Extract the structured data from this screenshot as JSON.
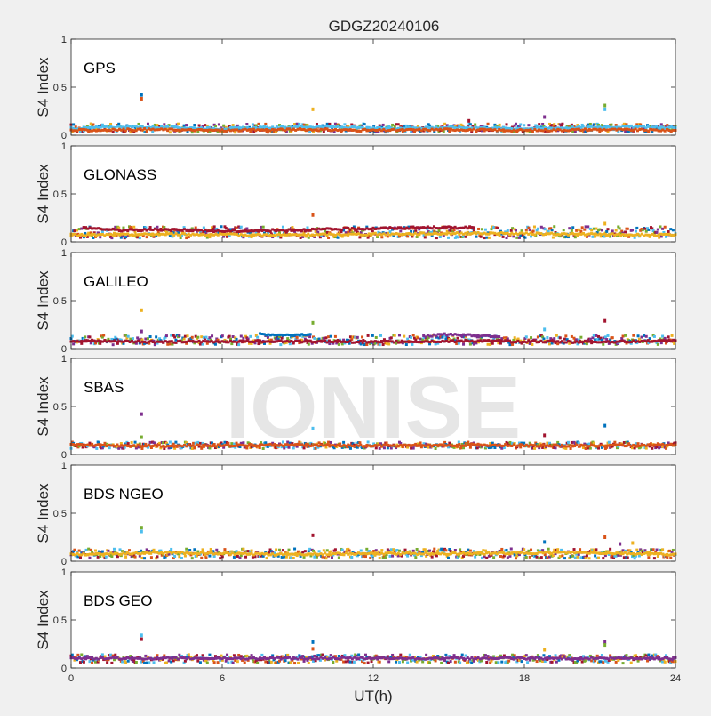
{
  "figure": {
    "title": "GDGZ20240106",
    "xlabel": "UT(h)",
    "watermark": "IONISE"
  },
  "chart_data": {
    "type": "scatter",
    "title": "GDGZ20240106",
    "xlabel": "UT(h)",
    "xlim": [
      0,
      24
    ],
    "xticks": [
      0,
      6,
      12,
      18,
      24
    ],
    "colors": [
      "#0072BD",
      "#D95319",
      "#EDB120",
      "#7E2F8E",
      "#77AC30",
      "#4DBEEE",
      "#A2142F"
    ],
    "panels": [
      {
        "label": "GPS",
        "ylabel": "S4 Index",
        "ylim": [
          0,
          1
        ],
        "yticks": [
          0,
          0.5,
          1
        ],
        "baseline": [
          0.03,
          0.12
        ],
        "series": [
          {
            "x": [
              0,
              2,
              4,
              6,
              8,
              10,
              12,
              14,
              16,
              18,
              20,
              22,
              24
            ],
            "y": [
              0.07,
              0.09,
              0.08,
              0.07,
              0.08,
              0.09,
              0.07,
              0.08,
              0.08,
              0.07,
              0.08,
              0.09,
              0.08
            ]
          },
          {
            "x": [
              0,
              3,
              6,
              9,
              12,
              15,
              18,
              21,
              24
            ],
            "y": [
              0.05,
              0.06,
              0.05,
              0.06,
              0.05,
              0.06,
              0.05,
              0.06,
              0.05
            ]
          }
        ],
        "spikes": [
          {
            "x": 2.8,
            "y": 0.42
          },
          {
            "x": 2.8,
            "y": 0.38
          },
          {
            "x": 9.6,
            "y": 0.27
          },
          {
            "x": 18.8,
            "y": 0.19
          },
          {
            "x": 21.2,
            "y": 0.31
          },
          {
            "x": 21.2,
            "y": 0.27
          },
          {
            "x": 15.8,
            "y": 0.15
          }
        ]
      },
      {
        "label": "GLONASS",
        "ylabel": "S4 Index",
        "ylim": [
          0,
          1
        ],
        "yticks": [
          0,
          0.5,
          1
        ],
        "baseline": [
          0.04,
          0.16
        ],
        "series": [
          {
            "x": [
              0.5,
              2,
              4,
              6,
              8,
              10,
              12,
              14,
              16
            ],
            "y": [
              0.15,
              0.12,
              0.13,
              0.11,
              0.12,
              0.13,
              0.14,
              0.15,
              0.15
            ]
          },
          {
            "x": [
              0,
              4,
              8,
              12,
              16,
              20,
              24
            ],
            "y": [
              0.07,
              0.08,
              0.07,
              0.08,
              0.09,
              0.08,
              0.07
            ]
          }
        ],
        "spikes": [
          {
            "x": 9.6,
            "y": 0.28
          },
          {
            "x": 21.2,
            "y": 0.19
          }
        ]
      },
      {
        "label": "GALILEO",
        "ylabel": "S4 Index",
        "ylim": [
          0,
          1
        ],
        "yticks": [
          0,
          0.5,
          1
        ],
        "baseline": [
          0.04,
          0.14
        ],
        "series": [
          {
            "x": [
              7.5,
              8.5,
              9.5
            ],
            "y": [
              0.15,
              0.14,
              0.15
            ]
          },
          {
            "x": [
              14,
              15,
              16,
              17
            ],
            "y": [
              0.13,
              0.15,
              0.14,
              0.13
            ]
          },
          {
            "x": [
              0,
              4,
              8,
              12,
              16,
              20,
              24
            ],
            "y": [
              0.08,
              0.07,
              0.08,
              0.07,
              0.08,
              0.07,
              0.08
            ]
          }
        ],
        "spikes": [
          {
            "x": 2.8,
            "y": 0.4
          },
          {
            "x": 2.8,
            "y": 0.18
          },
          {
            "x": 9.6,
            "y": 0.27
          },
          {
            "x": 18.8,
            "y": 0.2
          },
          {
            "x": 21.2,
            "y": 0.29
          }
        ]
      },
      {
        "label": "SBAS",
        "ylabel": "S4 Index",
        "ylim": [
          0,
          1
        ],
        "yticks": [
          0,
          0.5,
          1
        ],
        "baseline": [
          0.06,
          0.13
        ],
        "series": [
          {
            "x": [
              0,
              4,
              8,
              12,
              16,
              20,
              24
            ],
            "y": [
              0.1,
              0.09,
              0.1,
              0.09,
              0.1,
              0.09,
              0.1
            ]
          }
        ],
        "spikes": [
          {
            "x": 2.8,
            "y": 0.42
          },
          {
            "x": 2.8,
            "y": 0.18
          },
          {
            "x": 9.6,
            "y": 0.27
          },
          {
            "x": 18.8,
            "y": 0.2
          },
          {
            "x": 21.2,
            "y": 0.3
          }
        ]
      },
      {
        "label": "BDS NGEO",
        "ylabel": "S4 Index",
        "ylim": [
          0,
          1
        ],
        "yticks": [
          0,
          0.5,
          1
        ],
        "baseline": [
          0.03,
          0.13
        ],
        "series": [
          {
            "x": [
              0,
              4,
              8,
              12,
              16,
              20,
              24
            ],
            "y": [
              0.07,
              0.09,
              0.07,
              0.08,
              0.08,
              0.09,
              0.07
            ]
          }
        ],
        "spikes": [
          {
            "x": 2.8,
            "y": 0.35
          },
          {
            "x": 2.8,
            "y": 0.31
          },
          {
            "x": 9.6,
            "y": 0.27
          },
          {
            "x": 18.8,
            "y": 0.2
          },
          {
            "x": 21.2,
            "y": 0.25
          },
          {
            "x": 22.3,
            "y": 0.19
          },
          {
            "x": 21.8,
            "y": 0.18
          }
        ]
      },
      {
        "label": "BDS GEO",
        "ylabel": "S4 Index",
        "ylim": [
          0,
          1
        ],
        "yticks": [
          0,
          0.5,
          1
        ],
        "baseline": [
          0.05,
          0.14
        ],
        "series": [
          {
            "x": [
              0,
              4,
              8,
              12,
              16,
              20,
              24
            ],
            "y": [
              0.1,
              0.1,
              0.1,
              0.1,
              0.1,
              0.1,
              0.1
            ]
          }
        ],
        "spikes": [
          {
            "x": 2.8,
            "y": 0.34
          },
          {
            "x": 2.8,
            "y": 0.3
          },
          {
            "x": 9.6,
            "y": 0.27
          },
          {
            "x": 9.6,
            "y": 0.2
          },
          {
            "x": 18.8,
            "y": 0.19
          },
          {
            "x": 21.2,
            "y": 0.27
          },
          {
            "x": 21.2,
            "y": 0.24
          }
        ]
      }
    ]
  }
}
